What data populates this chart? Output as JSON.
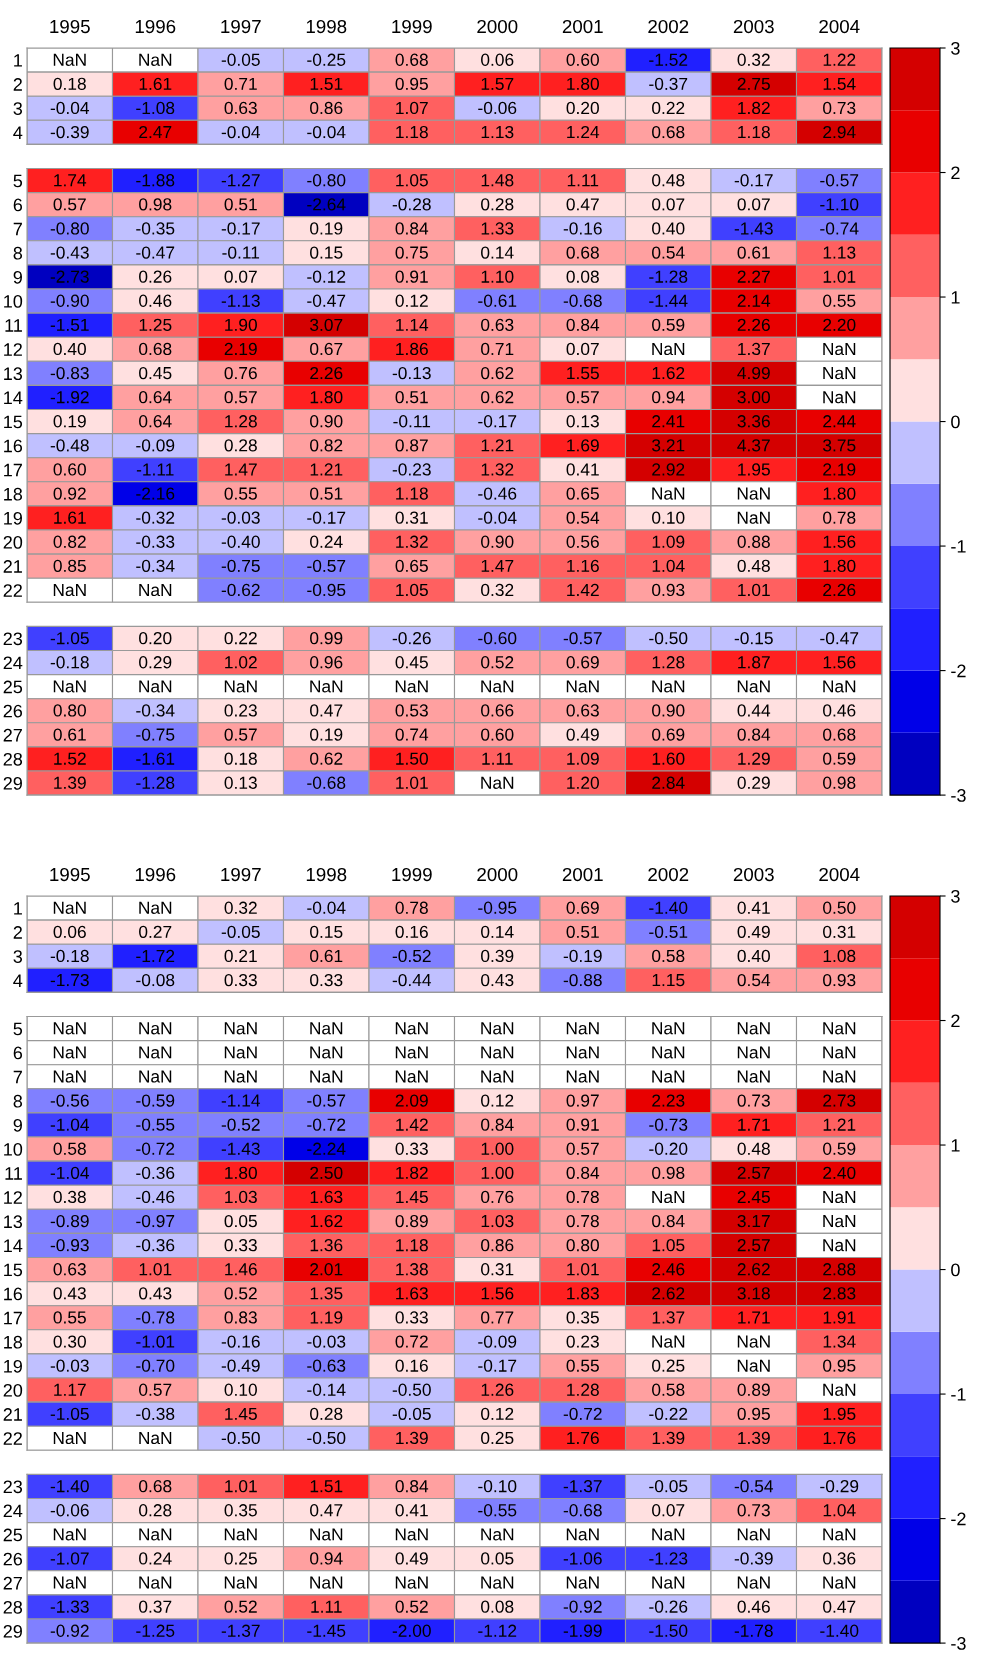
{
  "chart_data": [
    {
      "type": "heatmap",
      "categories": [
        "1995",
        "1996",
        "1997",
        "1998",
        "1999",
        "2000",
        "2001",
        "2002",
        "2003",
        "2004"
      ],
      "y_categories": [
        "1",
        "2",
        "3",
        "4"
      ],
      "clim": [
        -3,
        3
      ],
      "cticks": [
        -3,
        -2,
        -1,
        0,
        1,
        2,
        3
      ],
      "cells": [
        [
          null,
          null,
          -0.05,
          -0.25,
          0.68,
          0.06,
          0.6,
          -1.52,
          0.32,
          1.22
        ],
        [
          0.18,
          1.61,
          0.71,
          1.51,
          0.95,
          1.57,
          1.8,
          -0.37,
          2.75,
          1.54
        ],
        [
          -0.04,
          -1.08,
          0.63,
          0.86,
          1.07,
          -0.06,
          0.2,
          0.22,
          1.82,
          0.73
        ],
        [
          -0.39,
          2.47,
          -0.04,
          -0.04,
          1.18,
          1.13,
          1.24,
          0.68,
          1.18,
          2.94
        ]
      ],
      "cell_labels": [
        [
          "NaN",
          "NaN",
          "-0.05",
          "-0.25",
          "0.68",
          "0.06",
          "0.60",
          "-1.52",
          "0.32",
          "1.22"
        ],
        [
          "0.18",
          "1.61",
          "0.71",
          "1.51",
          "0.95",
          "1.57",
          "1.80",
          "-0.37",
          "2.75",
          "1.54"
        ],
        [
          "-0.04",
          "-1.08",
          "0.63",
          "0.86",
          "1.07",
          "-0.06",
          "0.20",
          "0.22",
          "1.82",
          "0.73"
        ],
        [
          "-0.39",
          "2.47",
          "-0.04",
          "-0.04",
          "1.18",
          "1.13",
          "1.24",
          "0.68",
          "1.18",
          "2.94"
        ]
      ]
    },
    {
      "type": "heatmap",
      "categories": [
        "1995",
        "1996",
        "1997",
        "1998",
        "1999",
        "2000",
        "2001",
        "2002",
        "2003",
        "2004"
      ],
      "y_categories": [
        "5",
        "6",
        "7",
        "8",
        "9",
        "10",
        "11",
        "12",
        "13",
        "14",
        "15",
        "16",
        "17",
        "18",
        "19",
        "20",
        "21",
        "22"
      ],
      "tick_labels": "y",
      "cells": [
        [
          1.74,
          -1.88,
          -1.27,
          -0.8,
          1.05,
          1.48,
          1.11,
          0.48,
          -0.17,
          -0.57
        ],
        [
          0.57,
          0.98,
          0.51,
          -2.64,
          -0.28,
          0.28,
          0.47,
          0.07,
          0.07,
          -1.1
        ],
        [
          -0.8,
          -0.35,
          -0.17,
          0.19,
          0.84,
          1.33,
          -0.16,
          0.4,
          -1.43,
          -0.74
        ],
        [
          -0.43,
          -0.47,
          -0.11,
          0.15,
          0.75,
          0.14,
          0.68,
          0.54,
          0.61,
          1.13
        ],
        [
          -2.73,
          0.26,
          0.07,
          -0.12,
          0.91,
          1.1,
          0.08,
          -1.28,
          2.27,
          1.01
        ],
        [
          -0.9,
          0.46,
          -1.13,
          -0.47,
          0.12,
          -0.61,
          -0.68,
          -1.44,
          2.14,
          0.55
        ],
        [
          -1.51,
          1.25,
          1.9,
          3.07,
          1.14,
          0.63,
          0.84,
          0.59,
          2.26,
          2.2
        ],
        [
          0.4,
          0.68,
          2.19,
          0.67,
          1.86,
          0.71,
          0.07,
          null,
          1.37,
          null
        ],
        [
          -0.83,
          0.45,
          0.76,
          2.26,
          -0.13,
          0.62,
          1.55,
          1.62,
          4.99,
          null
        ],
        [
          -1.92,
          0.64,
          0.57,
          1.8,
          0.51,
          0.62,
          0.57,
          0.94,
          3.0,
          null
        ],
        [
          0.19,
          0.64,
          1.28,
          0.9,
          -0.11,
          -0.17,
          0.13,
          2.41,
          3.36,
          2.44
        ],
        [
          -0.48,
          -0.09,
          0.28,
          0.82,
          0.87,
          1.21,
          1.69,
          3.21,
          4.37,
          3.75
        ],
        [
          0.6,
          -1.11,
          1.47,
          1.21,
          -0.23,
          1.32,
          0.41,
          2.92,
          1.95,
          2.19
        ],
        [
          0.92,
          -2.16,
          0.55,
          0.51,
          1.18,
          -0.46,
          0.65,
          null,
          null,
          1.8
        ],
        [
          1.61,
          -0.32,
          -0.03,
          -0.17,
          0.31,
          -0.04,
          0.54,
          0.1,
          null,
          0.78
        ],
        [
          0.82,
          -0.33,
          -0.4,
          0.24,
          1.32,
          0.9,
          0.56,
          1.09,
          0.88,
          1.56
        ],
        [
          0.85,
          -0.34,
          -0.75,
          -0.57,
          0.65,
          1.47,
          1.16,
          1.04,
          0.48,
          1.8
        ],
        [
          null,
          null,
          -0.62,
          -0.95,
          1.05,
          0.32,
          1.42,
          0.93,
          1.01,
          2.26
        ]
      ],
      "cell_labels": [
        [
          "1.74",
          "-1.88",
          "-1.27",
          "-0.80",
          "1.05",
          "1.48",
          "1.11",
          "0.48",
          "-0.17",
          "-0.57"
        ],
        [
          "0.57",
          "0.98",
          "0.51",
          "-2.64",
          "-0.28",
          "0.28",
          "0.47",
          "0.07",
          "0.07",
          "-1.10"
        ],
        [
          "-0.80",
          "-0.35",
          "-0.17",
          "0.19",
          "0.84",
          "1.33",
          "-0.16",
          "0.40",
          "-1.43",
          "-0.74"
        ],
        [
          "-0.43",
          "-0.47",
          "-0.11",
          "0.15",
          "0.75",
          "0.14",
          "0.68",
          "0.54",
          "0.61",
          "1.13"
        ],
        [
          "-2.73",
          "0.26",
          "0.07",
          "-0.12",
          "0.91",
          "1.10",
          "0.08",
          "-1.28",
          "2.27",
          "1.01"
        ],
        [
          "-0.90",
          "0.46",
          "-1.13",
          "-0.47",
          "0.12",
          "-0.61",
          "-0.68",
          "-1.44",
          "2.14",
          "0.55"
        ],
        [
          "-1.51",
          "1.25",
          "1.90",
          "3.07",
          "1.14",
          "0.63",
          "0.84",
          "0.59",
          "2.26",
          "2.20"
        ],
        [
          "0.40",
          "0.68",
          "2.19",
          "0.67",
          "1.86",
          "0.71",
          "0.07",
          "NaN",
          "1.37",
          "NaN"
        ],
        [
          "-0.83",
          "0.45",
          "0.76",
          "2.26",
          "-0.13",
          "0.62",
          "1.55",
          "1.62",
          "4.99",
          "NaN"
        ],
        [
          "-1.92",
          "0.64",
          "0.57",
          "1.80",
          "0.51",
          "0.62",
          "0.57",
          "0.94",
          "3.00",
          "NaN"
        ],
        [
          "0.19",
          "0.64",
          "1.28",
          "0.90",
          "-0.11",
          "-0.17",
          "0.13",
          "2.41",
          "3.36",
          "2.44"
        ],
        [
          "-0.48",
          "-0.09",
          "0.28",
          "0.82",
          "0.87",
          "1.21",
          "1.69",
          "3.21",
          "4.37",
          "3.75"
        ],
        [
          "0.60",
          "-1.11",
          "1.47",
          "1.21",
          "-0.23",
          "1.32",
          "0.41",
          "2.92",
          "1.95",
          "2.19"
        ],
        [
          "0.92",
          "-2.16",
          "0.55",
          "0.51",
          "1.18",
          "-0.46",
          "0.65",
          "NaN",
          "NaN",
          "1.80"
        ],
        [
          "1.61",
          "-0.32",
          "-0.03",
          "-0.17",
          "0.31",
          "-0.04",
          "0.54",
          "0.10",
          "NaN",
          "0.78"
        ],
        [
          "0.82",
          "-0.33",
          "-0.40",
          "0.24",
          "1.32",
          "0.90",
          "0.56",
          "1.09",
          "0.88",
          "1.56"
        ],
        [
          "0.85",
          "-0.34",
          "-0.75",
          "-0.57",
          "0.65",
          "1.47",
          "1.16",
          "1.04",
          "0.48",
          "1.80"
        ],
        [
          "NaN",
          "NaN",
          "-0.62",
          "-0.95",
          "1.05",
          "0.32",
          "1.42",
          "0.93",
          "1.01",
          "2.26"
        ]
      ]
    },
    {
      "type": "heatmap",
      "categories": [
        "1995",
        "1996",
        "1997",
        "1998",
        "1999",
        "2000",
        "2001",
        "2002",
        "2003",
        "2004"
      ],
      "y_categories": [
        "23",
        "24",
        "25",
        "26",
        "27",
        "28",
        "29"
      ],
      "tick_labels": "y",
      "cells": [
        [
          -1.05,
          0.2,
          0.22,
          0.99,
          -0.26,
          -0.6,
          -0.57,
          -0.5,
          -0.15,
          -0.47
        ],
        [
          -0.18,
          0.29,
          1.02,
          0.96,
          0.45,
          0.52,
          0.69,
          1.28,
          1.87,
          1.56
        ],
        [
          null,
          null,
          null,
          null,
          null,
          null,
          null,
          null,
          null,
          null
        ],
        [
          0.8,
          -0.34,
          0.23,
          0.47,
          0.53,
          0.66,
          0.63,
          0.9,
          0.44,
          0.46
        ],
        [
          0.61,
          -0.75,
          0.57,
          0.19,
          0.74,
          0.6,
          0.49,
          0.69,
          0.84,
          0.68
        ],
        [
          1.52,
          -1.61,
          0.18,
          0.62,
          1.5,
          1.11,
          1.09,
          1.6,
          1.29,
          0.59
        ],
        [
          1.39,
          -1.28,
          0.13,
          -0.68,
          1.01,
          null,
          1.2,
          2.84,
          0.29,
          0.98
        ]
      ],
      "cell_labels": [
        [
          "-1.05",
          "0.20",
          "0.22",
          "0.99",
          "-0.26",
          "-0.60",
          "-0.57",
          "-0.50",
          "-0.15",
          "-0.47"
        ],
        [
          "-0.18",
          "0.29",
          "1.02",
          "0.96",
          "0.45",
          "0.52",
          "0.69",
          "1.28",
          "1.87",
          "1.56"
        ],
        [
          "NaN",
          "NaN",
          "NaN",
          "NaN",
          "NaN",
          "NaN",
          "NaN",
          "NaN",
          "NaN",
          "NaN"
        ],
        [
          "0.80",
          "-0.34",
          "0.23",
          "0.47",
          "0.53",
          "0.66",
          "0.63",
          "0.90",
          "0.44",
          "0.46"
        ],
        [
          "0.61",
          "-0.75",
          "0.57",
          "0.19",
          "0.74",
          "0.60",
          "0.49",
          "0.69",
          "0.84",
          "0.68"
        ],
        [
          "1.52",
          "-1.61",
          "0.18",
          "0.62",
          "1.50",
          "1.11",
          "1.09",
          "1.60",
          "1.29",
          "0.59"
        ],
        [
          "1.39",
          "-1.28",
          "0.13",
          "-0.68",
          "1.01",
          "NaN",
          "1.20",
          "2.84",
          "0.29",
          "0.98"
        ]
      ]
    },
    {
      "type": "heatmap",
      "categories": [
        "1995",
        "1996",
        "1997",
        "1998",
        "1999",
        "2000",
        "2001",
        "2002",
        "2003",
        "2004"
      ],
      "y_categories": [
        "1",
        "2",
        "3",
        "4"
      ],
      "clim": [
        -3,
        3
      ],
      "cticks": [
        -3,
        -2,
        -1,
        0,
        1,
        2,
        3
      ],
      "cells": [
        [
          null,
          null,
          0.32,
          -0.04,
          0.78,
          -0.95,
          0.69,
          -1.4,
          0.41,
          0.5
        ],
        [
          0.06,
          0.27,
          -0.05,
          0.15,
          0.16,
          0.14,
          0.51,
          -0.51,
          0.49,
          0.31
        ],
        [
          -0.18,
          -1.72,
          0.21,
          0.61,
          -0.52,
          0.39,
          -0.19,
          0.58,
          0.4,
          1.08
        ],
        [
          -1.73,
          -0.08,
          0.33,
          0.33,
          -0.44,
          0.43,
          -0.88,
          1.15,
          0.54,
          0.93
        ]
      ],
      "cell_labels": [
        [
          "NaN",
          "NaN",
          "0.32",
          "-0.04",
          "0.78",
          "-0.95",
          "0.69",
          "-1.40",
          "0.41",
          "0.50"
        ],
        [
          "0.06",
          "0.27",
          "-0.05",
          "0.15",
          "0.16",
          "0.14",
          "0.51",
          "-0.51",
          "0.49",
          "0.31"
        ],
        [
          "-0.18",
          "-1.72",
          "0.21",
          "0.61",
          "-0.52",
          "0.39",
          "-0.19",
          "0.58",
          "0.40",
          "1.08"
        ],
        [
          "-1.73",
          "-0.08",
          "0.33",
          "0.33",
          "-0.44",
          "0.43",
          "-0.88",
          "1.15",
          "0.54",
          "0.93"
        ]
      ]
    },
    {
      "type": "heatmap",
      "categories": [
        "1995",
        "1996",
        "1997",
        "1998",
        "1999",
        "2000",
        "2001",
        "2002",
        "2003",
        "2004"
      ],
      "y_categories": [
        "5",
        "6",
        "7",
        "8",
        "9",
        "10",
        "11",
        "12",
        "13",
        "14",
        "15",
        "16",
        "17",
        "18",
        "19",
        "20",
        "21",
        "22"
      ],
      "tick_labels": "y",
      "cells": [
        [
          null,
          null,
          null,
          null,
          null,
          null,
          null,
          null,
          null,
          null
        ],
        [
          null,
          null,
          null,
          null,
          null,
          null,
          null,
          null,
          null,
          null
        ],
        [
          null,
          null,
          null,
          null,
          null,
          null,
          null,
          null,
          null,
          null
        ],
        [
          -0.56,
          -0.59,
          -1.14,
          -0.57,
          2.09,
          0.12,
          0.97,
          2.23,
          0.73,
          2.73
        ],
        [
          -1.04,
          -0.55,
          -0.52,
          -0.72,
          1.42,
          0.84,
          0.91,
          -0.73,
          1.71,
          1.21
        ],
        [
          0.58,
          -0.72,
          -1.43,
          -2.24,
          0.33,
          1.0,
          0.57,
          -0.2,
          0.48,
          0.59
        ],
        [
          -1.04,
          -0.36,
          1.8,
          2.5,
          1.82,
          1.0,
          0.84,
          0.98,
          2.57,
          2.4
        ],
        [
          0.38,
          -0.46,
          1.03,
          1.63,
          1.45,
          0.76,
          0.78,
          null,
          2.45,
          null
        ],
        [
          -0.89,
          -0.97,
          0.05,
          1.62,
          0.89,
          1.03,
          0.78,
          0.84,
          3.17,
          null
        ],
        [
          -0.93,
          -0.36,
          0.33,
          1.36,
          1.18,
          0.86,
          0.8,
          1.05,
          2.57,
          null
        ],
        [
          0.63,
          1.01,
          1.46,
          2.01,
          1.38,
          0.31,
          1.01,
          2.46,
          2.62,
          2.88
        ],
        [
          0.43,
          0.43,
          0.52,
          1.35,
          1.63,
          1.56,
          1.83,
          2.62,
          3.18,
          2.83
        ],
        [
          0.55,
          -0.78,
          0.83,
          1.19,
          0.33,
          0.77,
          0.35,
          1.37,
          1.71,
          1.91
        ],
        [
          0.3,
          -1.01,
          -0.16,
          -0.03,
          0.72,
          -0.09,
          0.23,
          null,
          null,
          1.34
        ],
        [
          -0.03,
          -0.7,
          -0.49,
          -0.63,
          0.16,
          -0.17,
          0.55,
          0.25,
          null,
          0.95
        ],
        [
          1.17,
          0.57,
          0.1,
          -0.14,
          -0.5,
          1.26,
          1.28,
          0.58,
          0.89,
          null
        ],
        [
          -1.05,
          -0.38,
          1.45,
          0.28,
          -0.05,
          0.12,
          -0.72,
          -0.22,
          0.95,
          1.95
        ],
        [
          null,
          null,
          -0.5,
          -0.5,
          1.39,
          0.25,
          1.76,
          1.39,
          1.39,
          1.76
        ]
      ],
      "cell_labels": [
        [
          "NaN",
          "NaN",
          "NaN",
          "NaN",
          "NaN",
          "NaN",
          "NaN",
          "NaN",
          "NaN",
          "NaN"
        ],
        [
          "NaN",
          "NaN",
          "NaN",
          "NaN",
          "NaN",
          "NaN",
          "NaN",
          "NaN",
          "NaN",
          "NaN"
        ],
        [
          "NaN",
          "NaN",
          "NaN",
          "NaN",
          "NaN",
          "NaN",
          "NaN",
          "NaN",
          "NaN",
          "NaN"
        ],
        [
          "-0.56",
          "-0.59",
          "-1.14",
          "-0.57",
          "2.09",
          "0.12",
          "0.97",
          "2.23",
          "0.73",
          "2.73"
        ],
        [
          "-1.04",
          "-0.55",
          "-0.52",
          "-0.72",
          "1.42",
          "0.84",
          "0.91",
          "-0.73",
          "1.71",
          "1.21"
        ],
        [
          "0.58",
          "-0.72",
          "-1.43",
          "-2.24",
          "0.33",
          "1.00",
          "0.57",
          "-0.20",
          "0.48",
          "0.59"
        ],
        [
          "-1.04",
          "-0.36",
          "1.80",
          "2.50",
          "1.82",
          "1.00",
          "0.84",
          "0.98",
          "2.57",
          "2.40"
        ],
        [
          "0.38",
          "-0.46",
          "1.03",
          "1.63",
          "1.45",
          "0.76",
          "0.78",
          "NaN",
          "2.45",
          "NaN"
        ],
        [
          "-0.89",
          "-0.97",
          "0.05",
          "1.62",
          "0.89",
          "1.03",
          "0.78",
          "0.84",
          "3.17",
          "NaN"
        ],
        [
          "-0.93",
          "-0.36",
          "0.33",
          "1.36",
          "1.18",
          "0.86",
          "0.80",
          "1.05",
          "2.57",
          "NaN"
        ],
        [
          "0.63",
          "1.01",
          "1.46",
          "2.01",
          "1.38",
          "0.31",
          "1.01",
          "2.46",
          "2.62",
          "2.88"
        ],
        [
          "0.43",
          "0.43",
          "0.52",
          "1.35",
          "1.63",
          "1.56",
          "1.83",
          "2.62",
          "3.18",
          "2.83"
        ],
        [
          "0.55",
          "-0.78",
          "0.83",
          "1.19",
          "0.33",
          "0.77",
          "0.35",
          "1.37",
          "1.71",
          "1.91"
        ],
        [
          "0.30",
          "-1.01",
          "-0.16",
          "-0.03",
          "0.72",
          "-0.09",
          "0.23",
          "NaN",
          "NaN",
          "1.34"
        ],
        [
          "-0.03",
          "-0.70",
          "-0.49",
          "-0.63",
          "0.16",
          "-0.17",
          "0.55",
          "0.25",
          "NaN",
          "0.95"
        ],
        [
          "1.17",
          "0.57",
          "0.10",
          "-0.14",
          "-0.50",
          "1.26",
          "1.28",
          "0.58",
          "0.89",
          "NaN"
        ],
        [
          "-1.05",
          "-0.38",
          "1.45",
          "0.28",
          "-0.05",
          "0.12",
          "-0.72",
          "-0.22",
          "0.95",
          "1.95"
        ],
        [
          "NaN",
          "NaN",
          "-0.50",
          "-0.50",
          "1.39",
          "0.25",
          "1.76",
          "1.39",
          "1.39",
          "1.76"
        ]
      ]
    },
    {
      "type": "heatmap",
      "categories": [
        "1995",
        "1996",
        "1997",
        "1998",
        "1999",
        "2000",
        "2001",
        "2002",
        "2003",
        "2004"
      ],
      "y_categories": [
        "23",
        "24",
        "25",
        "26",
        "27",
        "28",
        "29"
      ],
      "tick_labels": "y",
      "cells": [
        [
          -1.4,
          0.68,
          1.01,
          1.51,
          0.84,
          -0.1,
          -1.37,
          -0.05,
          -0.54,
          -0.29
        ],
        [
          -0.06,
          0.28,
          0.35,
          0.47,
          0.41,
          -0.55,
          -0.68,
          0.07,
          0.73,
          1.04
        ],
        [
          null,
          null,
          null,
          null,
          null,
          null,
          null,
          null,
          null,
          null
        ],
        [
          -1.07,
          0.24,
          0.25,
          0.94,
          0.49,
          0.05,
          -1.06,
          -1.23,
          -0.39,
          0.36
        ],
        [
          null,
          null,
          null,
          null,
          null,
          null,
          null,
          null,
          null,
          null
        ],
        [
          -1.33,
          0.37,
          0.52,
          1.11,
          0.52,
          0.08,
          -0.92,
          -0.26,
          0.46,
          0.47
        ],
        [
          -0.92,
          -1.25,
          -1.37,
          -1.45,
          -2.0,
          -1.12,
          -1.99,
          -1.5,
          -1.78,
          -1.4
        ]
      ],
      "cell_labels": [
        [
          "-1.40",
          "0.68",
          "1.01",
          "1.51",
          "0.84",
          "-0.10",
          "-1.37",
          "-0.05",
          "-0.54",
          "-0.29"
        ],
        [
          "-0.06",
          "0.28",
          "0.35",
          "0.47",
          "0.41",
          "-0.55",
          "-0.68",
          "0.07",
          "0.73",
          "1.04"
        ],
        [
          "NaN",
          "NaN",
          "NaN",
          "NaN",
          "NaN",
          "NaN",
          "NaN",
          "NaN",
          "NaN",
          "NaN"
        ],
        [
          "-1.07",
          "0.24",
          "0.25",
          "0.94",
          "0.49",
          "0.05",
          "-1.06",
          "-1.23",
          "-0.39",
          "0.36"
        ],
        [
          "NaN",
          "NaN",
          "NaN",
          "NaN",
          "NaN",
          "NaN",
          "NaN",
          "NaN",
          "NaN",
          "NaN"
        ],
        [
          "-1.33",
          "0.37",
          "0.52",
          "1.11",
          "0.52",
          "0.08",
          "-0.92",
          "-0.26",
          "0.46",
          "0.47"
        ],
        [
          "-0.92",
          "-1.25",
          "-1.37",
          "-1.45",
          "-2.00",
          "-1.12",
          "-1.99",
          "-1.50",
          "-1.78",
          "-1.40"
        ]
      ]
    }
  ]
}
